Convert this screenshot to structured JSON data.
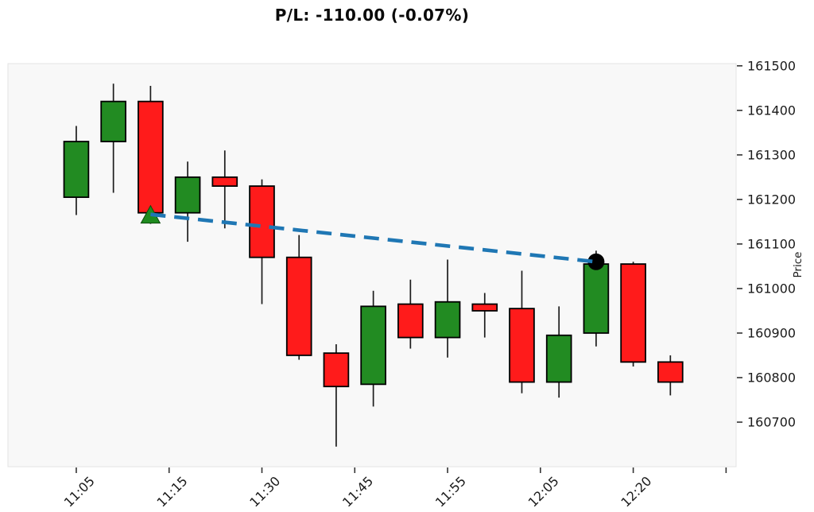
{
  "title": "P/L: -110.00 (-0.07%)",
  "chart_data": {
    "type": "candlestick",
    "title": "P/L: -110.00 (-0.07%)",
    "ylabel": "Price",
    "grid": false,
    "y_axis_side": "right",
    "ylim": [
      160600,
      161505
    ],
    "xlim": [
      -1.84,
      17.77
    ],
    "y_ticks": [
      161500,
      161400,
      161300,
      161200,
      161100,
      161000,
      160900,
      160800,
      160700
    ],
    "x_ticks": [
      {
        "pos": 0,
        "label": "11:05"
      },
      {
        "pos": 2.5,
        "label": "11:15"
      },
      {
        "pos": 5,
        "label": "11:30"
      },
      {
        "pos": 7.5,
        "label": "11:45"
      },
      {
        "pos": 10,
        "label": "11:55"
      },
      {
        "pos": 12.5,
        "label": "12:05"
      },
      {
        "pos": 15,
        "label": "12:20"
      },
      {
        "pos": 17.5,
        "label": ""
      }
    ],
    "candles": [
      {
        "time": "11:05",
        "open": 161205,
        "high": 161365,
        "low": 161165,
        "close": 161330
      },
      {
        "time": "11:10",
        "open": 161330,
        "high": 161460,
        "low": 161215,
        "close": 161420
      },
      {
        "time": "11:15",
        "open": 161420,
        "high": 161455,
        "low": 161145,
        "close": 161170
      },
      {
        "time": "11:20",
        "open": 161170,
        "high": 161285,
        "low": 161105,
        "close": 161250
      },
      {
        "time": "11:25",
        "open": 161250,
        "high": 161310,
        "low": 161135,
        "close": 161230
      },
      {
        "time": "11:30",
        "open": 161230,
        "high": 161245,
        "low": 160965,
        "close": 161070
      },
      {
        "time": "11:35",
        "open": 161070,
        "high": 161120,
        "low": 160840,
        "close": 160850
      },
      {
        "time": "11:40",
        "open": 160855,
        "high": 160875,
        "low": 160645,
        "close": 160780
      },
      {
        "time": "11:45",
        "open": 160785,
        "high": 160995,
        "low": 160735,
        "close": 160960
      },
      {
        "time": "11:50",
        "open": 160965,
        "high": 161020,
        "low": 160865,
        "close": 160890
      },
      {
        "time": "11:55",
        "open": 160890,
        "high": 161065,
        "low": 160845,
        "close": 160970
      },
      {
        "time": "12:00",
        "open": 160965,
        "high": 160990,
        "low": 160890,
        "close": 160950
      },
      {
        "time": "12:05",
        "open": 160955,
        "high": 161040,
        "low": 160765,
        "close": 160790
      },
      {
        "time": "12:10",
        "open": 160790,
        "high": 160960,
        "low": 160755,
        "close": 160895
      },
      {
        "time": "12:15",
        "open": 160900,
        "high": 161085,
        "low": 160870,
        "close": 161055
      },
      {
        "time": "12:20",
        "open": 161055,
        "high": 161060,
        "low": 160825,
        "close": 160835
      },
      {
        "time": "12:25",
        "open": 160835,
        "high": 160850,
        "low": 160760,
        "close": 160790
      }
    ],
    "trade": {
      "entry": {
        "time": "11:15",
        "index": 2,
        "price": 161170,
        "marker": "triangle-up",
        "color": "#1F8B1F"
      },
      "exit": {
        "time": "12:15",
        "index": 14,
        "price": 161060,
        "marker": "circle",
        "color": "#000000"
      },
      "pl": "-110.00",
      "pl_pct": "-0.07%",
      "line_color": "#1F77B4",
      "line_style": "dashed"
    },
    "colors": {
      "up": "#228B22",
      "down": "#FF1B1B",
      "wick": "#1C1C1C",
      "edge": "#000000",
      "plot_bg": "#F8F8F8",
      "page_bg": "#FFFFFF",
      "tick_text": "#1A1A1A",
      "spine": "#E3E3E3"
    }
  }
}
